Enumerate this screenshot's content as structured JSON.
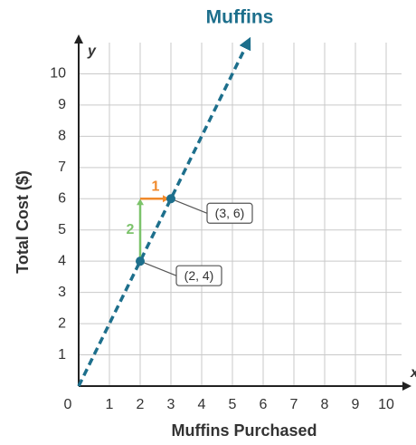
{
  "chart_data": {
    "type": "line",
    "title": "Muffins",
    "x_label": "Muffins Purchased",
    "y_label": "Total Cost ($)",
    "x_axis_symbol": "x",
    "y_axis_symbol": "y",
    "xlim": [
      0,
      10.5
    ],
    "ylim": [
      0,
      11
    ],
    "xticks": [
      0,
      1,
      2,
      3,
      4,
      5,
      6,
      7,
      8,
      9,
      10
    ],
    "yticks": [
      1,
      2,
      3,
      4,
      5,
      6,
      7,
      8,
      9,
      10
    ],
    "grid": true,
    "series": [
      {
        "color": "#1d6f8c",
        "x": [
          0,
          5.5
        ],
        "values": [
          0,
          11
        ]
      }
    ],
    "points": [
      {
        "x": 2,
        "y": 4,
        "label": "(2, 4)"
      },
      {
        "x": 3,
        "y": 6,
        "label": "(3, 6)"
      }
    ],
    "slope": {
      "rise": 2,
      "run": 1,
      "rise_color": "#7cc36b",
      "run_color": "#f08a2c"
    }
  }
}
